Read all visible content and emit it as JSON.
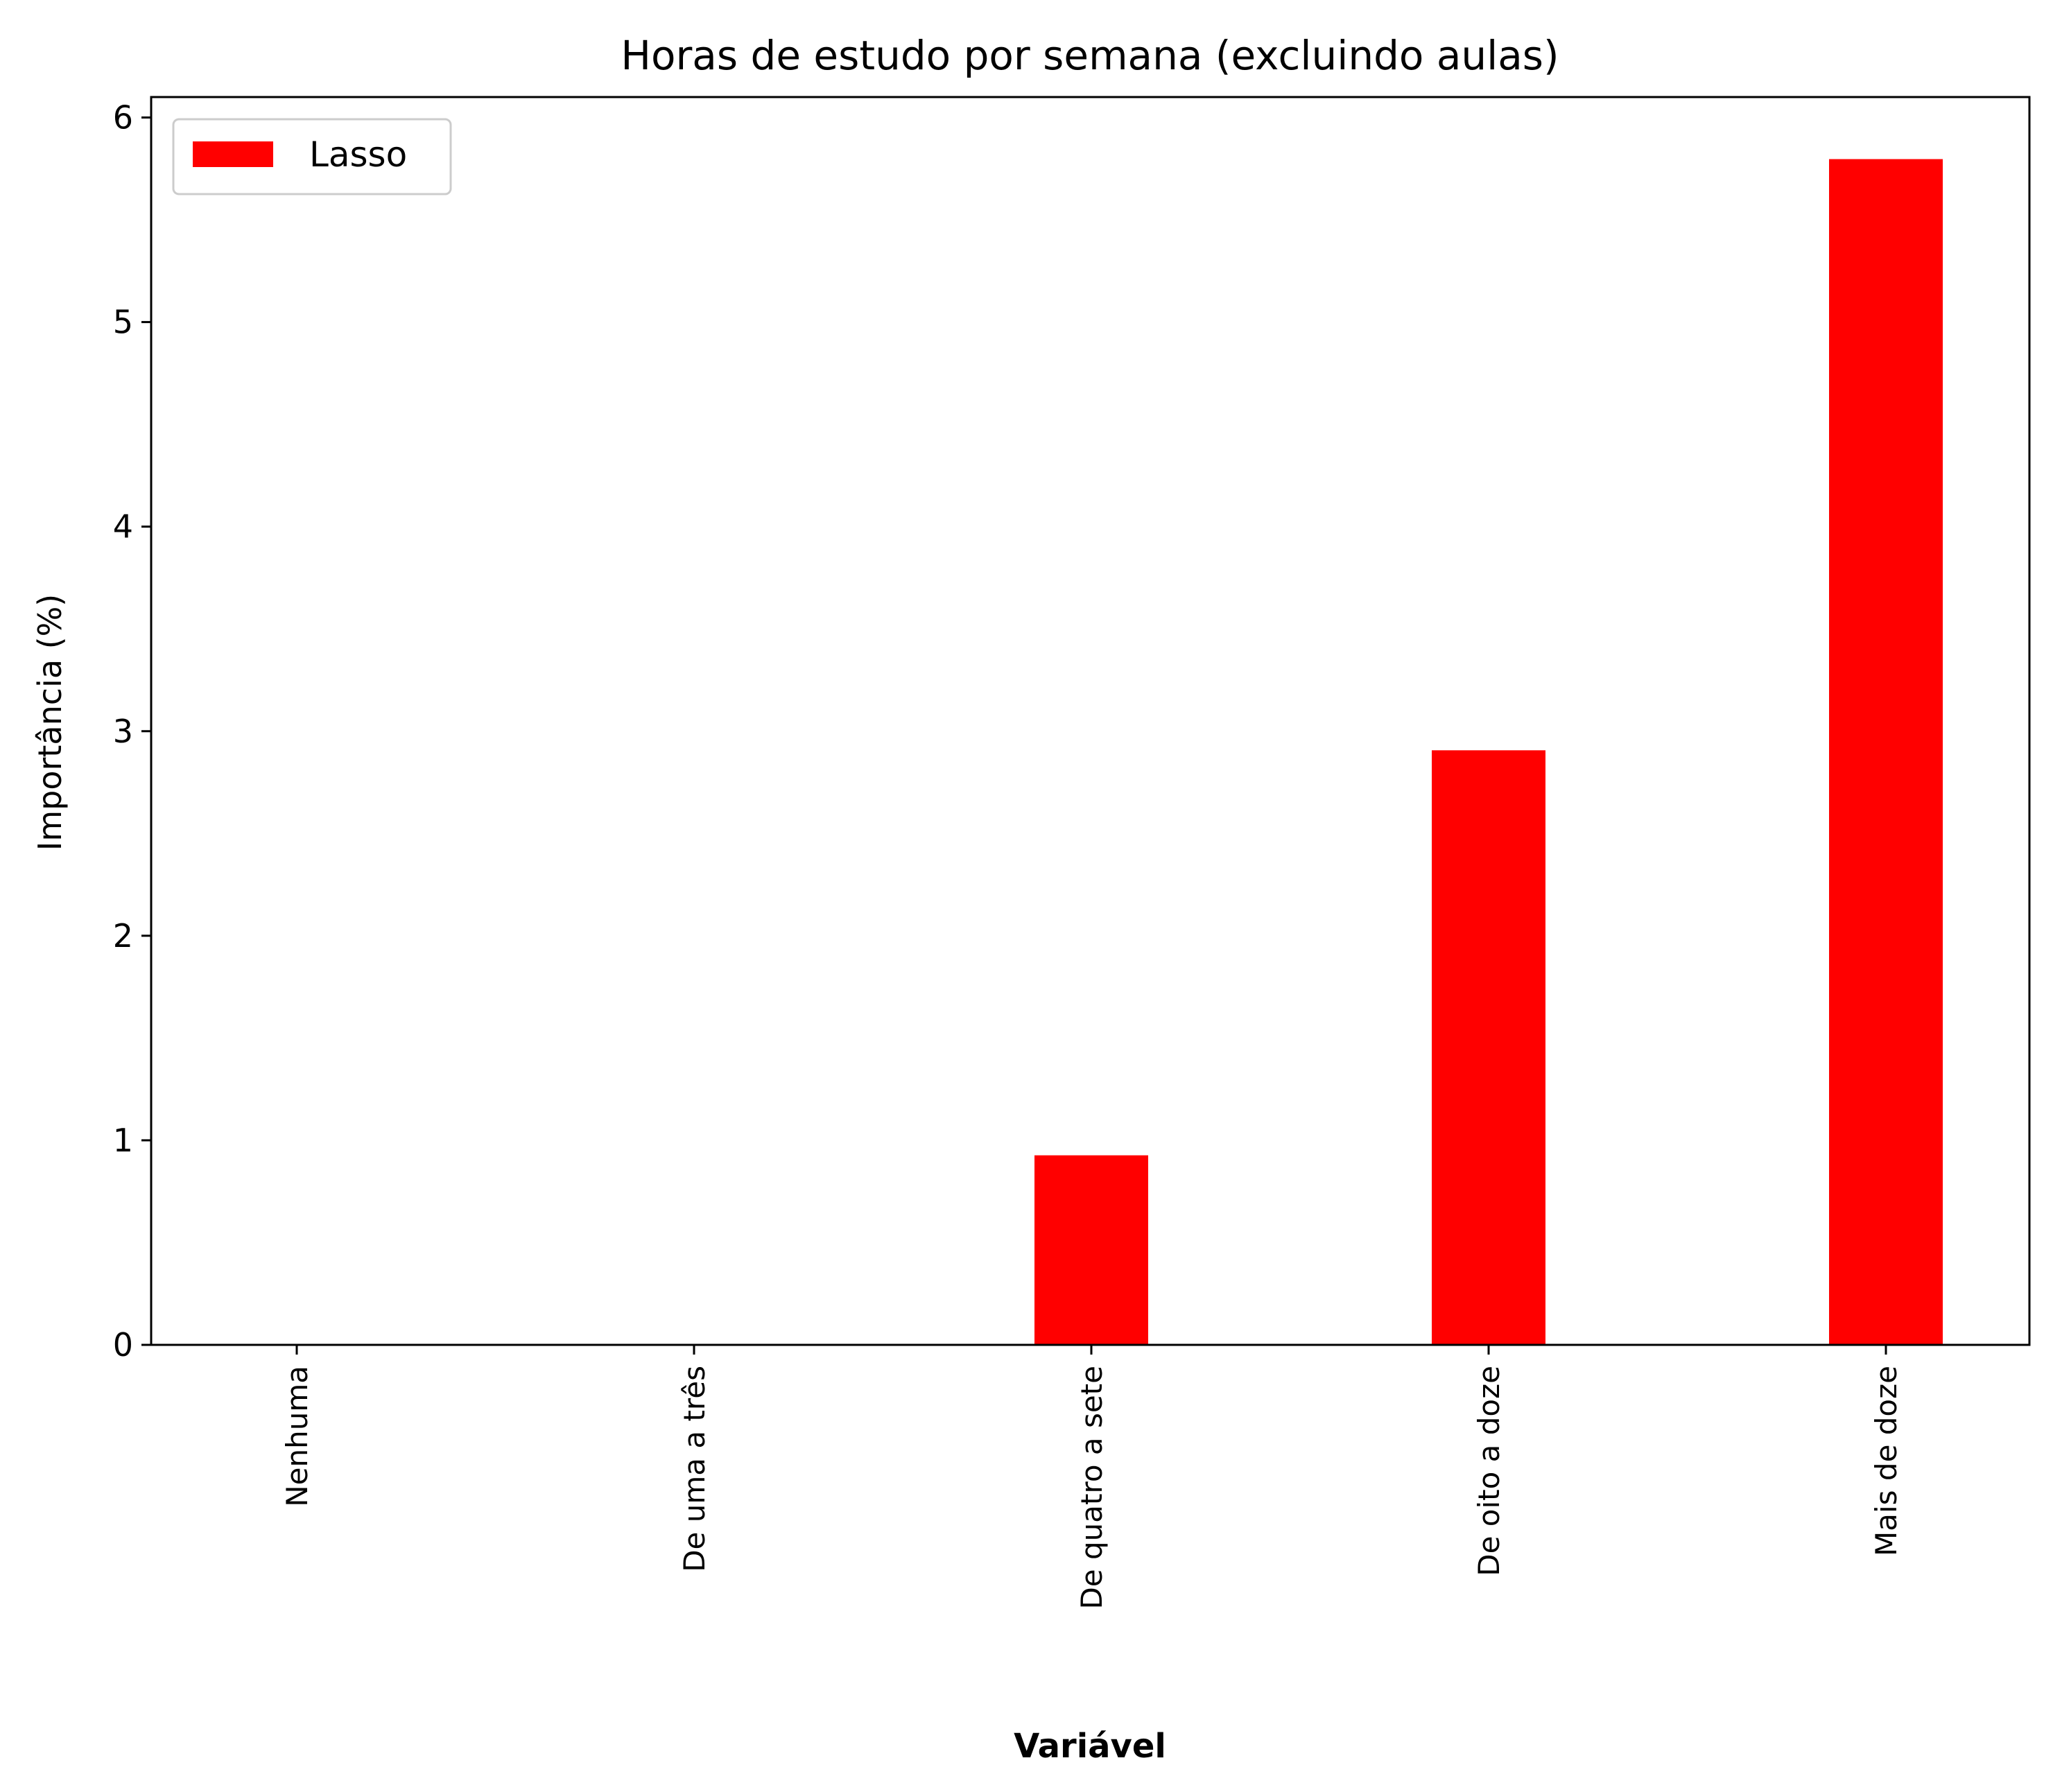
{
  "chart_data": {
    "type": "bar",
    "title": "Horas de estudo por semana (excluindo aulas)",
    "xlabel": "Variável",
    "ylabel": "Importância (%)",
    "categories": [
      "Nenhuma",
      "De uma a três",
      "De quatro a sete",
      "De oito a doze",
      "Mais de doze"
    ],
    "series": [
      {
        "name": "Lasso",
        "color": "#ff0000",
        "values": [
          0,
          0,
          0.93,
          2.91,
          5.8
        ]
      }
    ],
    "ylim": [
      0,
      6.1
    ],
    "yticks": [
      0,
      1,
      2,
      3,
      4,
      5,
      6
    ],
    "grid": false,
    "legend_position": "top-left"
  }
}
